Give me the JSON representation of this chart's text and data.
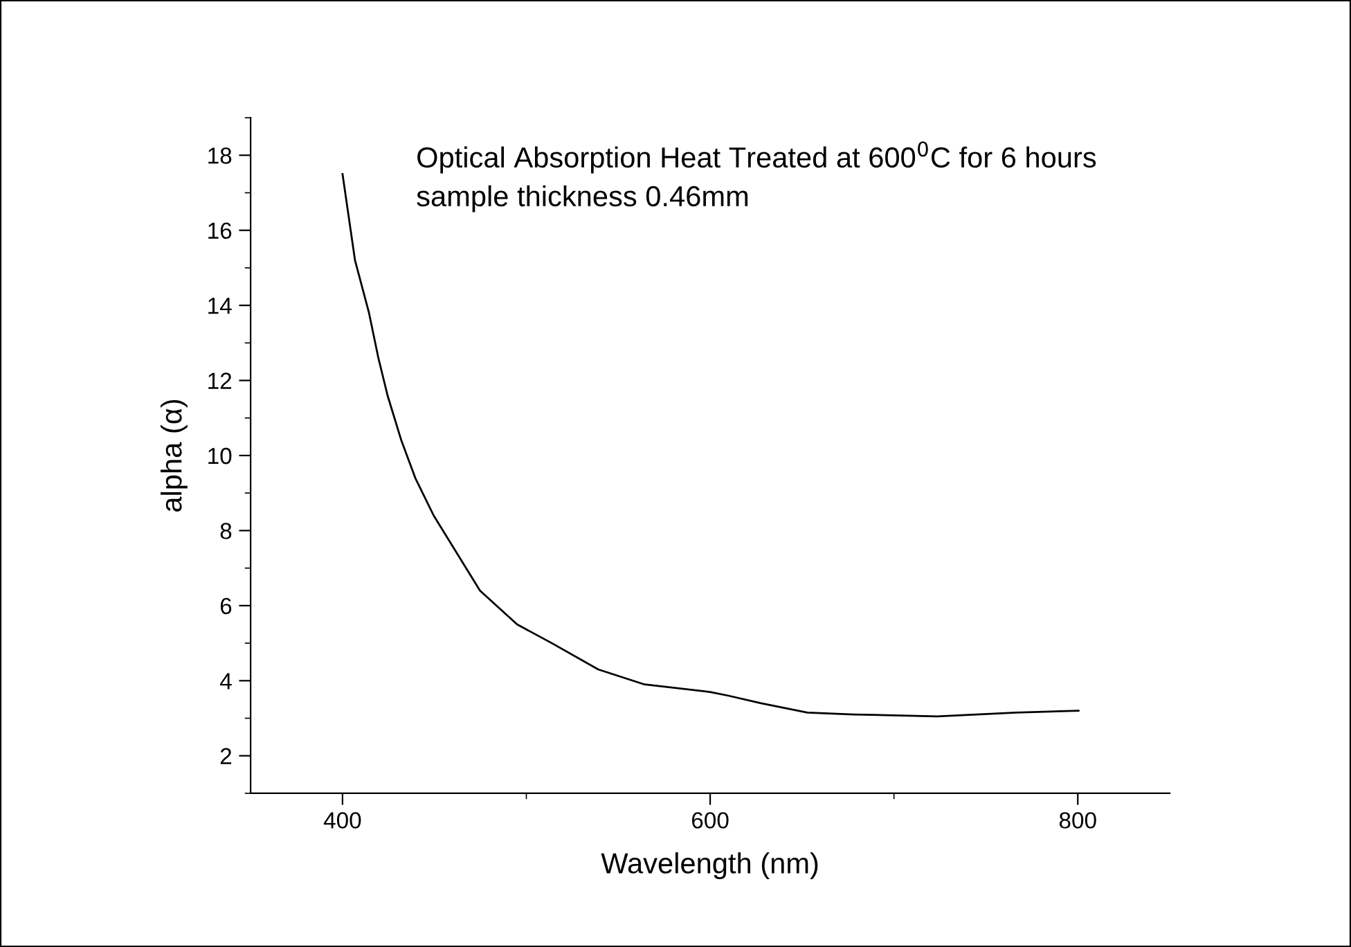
{
  "chart_data": {
    "type": "line",
    "xlabel": "Wavelength (nm)",
    "ylabel": "alpha (α)",
    "annotations": [
      "Optical Absorption Heat Treated at 600$^{0}$C for 6 hours",
      "sample thickness 0.46mm"
    ],
    "xlim": [
      350,
      850
    ],
    "xticks": [
      400,
      600,
      800
    ],
    "ylim": [
      1,
      19
    ],
    "yticks": [
      2,
      4,
      6,
      8,
      10,
      12,
      14,
      16,
      18
    ],
    "grid": false,
    "legend": false,
    "series": [
      {
        "color": "#000000",
        "x": [
          400,
          406.8,
          414.4,
          419.5,
          424.5,
          432,
          439.6,
          449.6,
          462.2,
          474.8,
          495,
          513.9,
          539.1,
          564.3,
          599.9,
          610,
          627.7,
          652.9,
          678.1,
          723.5,
          766.4,
          800.4
        ],
        "values": [
          17.5,
          15.2,
          13.8,
          12.6,
          11.6,
          10.4,
          9.4,
          8.4,
          7.4,
          6.4,
          5.5,
          5.0,
          4.3,
          3.9,
          3.7,
          3.6,
          3.4,
          3.15,
          3.1,
          3.05,
          3.15,
          3.2
        ]
      }
    ]
  }
}
